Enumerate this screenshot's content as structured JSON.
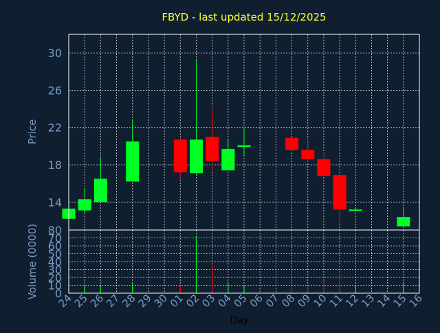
{
  "chart_data": {
    "type": "candlestick",
    "title": "FBYD - last updated 15/12/2025",
    "xlabel": "Day",
    "x_ticks": [
      "24",
      "25",
      "26",
      "27",
      "28",
      "29",
      "30",
      "01",
      "02",
      "03",
      "04",
      "05",
      "06",
      "07",
      "08",
      "09",
      "10",
      "11",
      "12",
      "13",
      "14",
      "15",
      "16"
    ],
    "grid": true,
    "colors": {
      "background": "#0f1f30",
      "up": "#00ff22",
      "down": "#ff0000",
      "title": "#ffff33",
      "axis_text": "#7a9cc4",
      "grid": "#ffffff"
    },
    "price_panel": {
      "ylabel": "Price",
      "ylim": [
        11,
        32
      ],
      "y_ticks": [
        14,
        18,
        22,
        26,
        30
      ],
      "candles": [
        {
          "day": "24",
          "open": 12.2,
          "close": 13.3,
          "high": 13.3,
          "low": 12.2
        },
        {
          "day": "25",
          "open": 13.1,
          "close": 14.3,
          "high": 15.5,
          "low": 12.8
        },
        {
          "day": "26",
          "open": 14.0,
          "close": 16.5,
          "high": 18.8,
          "low": 14.0
        },
        {
          "day": "28",
          "open": 16.2,
          "close": 20.5,
          "high": 22.8,
          "low": 16.2
        },
        {
          "day": "01",
          "open": 20.7,
          "close": 17.2,
          "high": 20.9,
          "low": 16.6
        },
        {
          "day": "02",
          "open": 17.1,
          "close": 20.7,
          "high": 29.2,
          "low": 17.0
        },
        {
          "day": "03",
          "open": 21.0,
          "close": 18.4,
          "high": 24.0,
          "low": 17.5
        },
        {
          "day": "04",
          "open": 17.4,
          "close": 19.7,
          "high": 20.8,
          "low": 17.4
        },
        {
          "day": "05",
          "open": 19.9,
          "close": 20.1,
          "high": 22.0,
          "low": 19.0
        },
        {
          "day": "08",
          "open": 20.9,
          "close": 19.6,
          "high": 20.9,
          "low": 19.6
        },
        {
          "day": "09",
          "open": 19.6,
          "close": 18.6,
          "high": 20.9,
          "low": 18.3
        },
        {
          "day": "10",
          "open": 18.6,
          "close": 16.8,
          "high": 19.4,
          "low": 16.8
        },
        {
          "day": "11",
          "open": 16.9,
          "close": 13.2,
          "high": 17.1,
          "low": 11.7
        },
        {
          "day": "12",
          "open": 13.1,
          "close": 13.2,
          "high": 13.3,
          "low": 13.1
        },
        {
          "day": "15",
          "open": 11.4,
          "close": 12.4,
          "high": 13.4,
          "low": 11.4
        }
      ]
    },
    "volume_panel": {
      "ylabel": "Volume (0000)",
      "ylim": [
        0,
        80
      ],
      "y_ticks": [
        0,
        10,
        20,
        30,
        40,
        50,
        60,
        70,
        80
      ],
      "bars": [
        {
          "day": "25",
          "value": 10,
          "direction": "up"
        },
        {
          "day": "26",
          "value": 9,
          "direction": "up"
        },
        {
          "day": "28",
          "value": 12,
          "direction": "up"
        },
        {
          "day": "01",
          "value": 10,
          "direction": "down"
        },
        {
          "day": "02",
          "value": 72,
          "direction": "up"
        },
        {
          "day": "03",
          "value": 35,
          "direction": "down"
        },
        {
          "day": "04",
          "value": 13,
          "direction": "up"
        },
        {
          "day": "05",
          "value": 9,
          "direction": "up"
        },
        {
          "day": "08",
          "value": 7,
          "direction": "down"
        },
        {
          "day": "09",
          "value": 8,
          "direction": "down"
        },
        {
          "day": "10",
          "value": 16,
          "direction": "down"
        },
        {
          "day": "11",
          "value": 24,
          "direction": "down"
        },
        {
          "day": "12",
          "value": 10,
          "direction": "up"
        },
        {
          "day": "15",
          "value": 14,
          "direction": "up"
        }
      ]
    }
  }
}
